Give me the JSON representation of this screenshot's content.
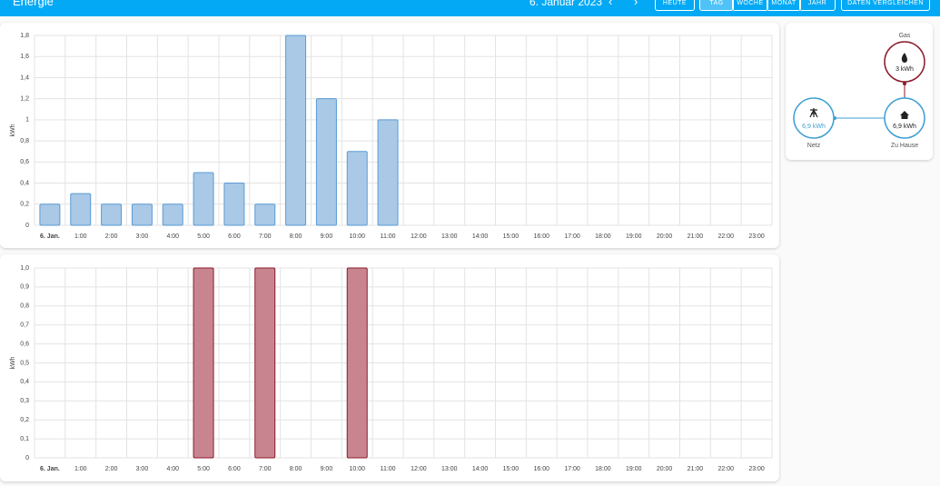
{
  "header": {
    "title": "Energie",
    "date": "6. Januar 2023",
    "buttons": [
      "HEUTE",
      "TAG",
      "WOCHE",
      "MONAT",
      "JAHR"
    ],
    "compare": "DATEN VERGLEICHEN"
  },
  "chart_data": [
    {
      "type": "bar",
      "y_label": "kWh",
      "color": "#a9c9e6",
      "border_color": "#5a9bd4",
      "categories": [
        "6. Jan.",
        "1:00",
        "2:00",
        "3:00",
        "4:00",
        "5:00",
        "6:00",
        "7:00",
        "8:00",
        "9:00",
        "10:00",
        "11:00",
        "12:00",
        "13:00",
        "14:00",
        "15:00",
        "16:00",
        "17:00",
        "18:00",
        "19:00",
        "20:00",
        "21:00",
        "22:00",
        "23:00"
      ],
      "values": [
        0.2,
        0.3,
        0.2,
        0.2,
        0.2,
        0.5,
        0.4,
        0.2,
        1.8,
        1.2,
        0.7,
        1,
        null,
        null,
        null,
        null,
        null,
        null,
        null,
        null,
        null,
        null,
        null,
        null
      ],
      "ylim": [
        0,
        1.8
      ],
      "yticks": [
        0,
        {
          "value": 0.2,
          "label": "0,2"
        },
        {
          "value": 0.4,
          "label": "0,4"
        },
        {
          "value": 0.6,
          "label": "0,6"
        },
        {
          "value": 0.8,
          "label": "0,8"
        },
        1,
        {
          "value": 1.2,
          "label": "1,2"
        },
        {
          "value": 1.4,
          "label": "1,4"
        },
        {
          "value": 1.6,
          "label": "1,6"
        },
        {
          "value": 1.8,
          "label": "1,8"
        }
      ],
      "grid": true
    },
    {
      "type": "bar",
      "y_label": "kWh",
      "color": "#c8858f",
      "border_color": "#8b1a2b",
      "categories": [
        "6. Jan.",
        "1:00",
        "2:00",
        "3:00",
        "4:00",
        "5:00",
        "6:00",
        "7:00",
        "8:00",
        "9:00",
        "10:00",
        "11:00",
        "12:00",
        "13:00",
        "14:00",
        "15:00",
        "16:00",
        "17:00",
        "18:00",
        "19:00",
        "20:00",
        "21:00",
        "22:00",
        "23:00"
      ],
      "values": [
        0,
        0,
        0,
        0,
        0,
        1,
        0,
        1,
        0,
        0,
        1,
        0,
        null,
        null,
        null,
        null,
        null,
        null,
        null,
        null,
        null,
        null,
        null,
        null
      ],
      "ylim": [
        0,
        1
      ],
      "yticks": [
        0,
        {
          "value": 0.1,
          "label": "0,1"
        },
        {
          "value": 0.2,
          "label": "0,2"
        },
        {
          "value": 0.3,
          "label": "0,3"
        },
        {
          "value": 0.4,
          "label": "0,4"
        },
        {
          "value": 0.5,
          "label": "0,5"
        },
        {
          "value": 0.6,
          "label": "0,6"
        },
        {
          "value": 0.7,
          "label": "0,7"
        },
        {
          "value": 0.8,
          "label": "0,8"
        },
        {
          "value": 0.9,
          "label": "0,9"
        },
        {
          "value": 1,
          "label": "1,0"
        }
      ],
      "grid": true
    }
  ],
  "energy_flow": {
    "gas": {
      "label": "Gas",
      "value": "3 kWh"
    },
    "grid": {
      "label": "Netz",
      "value": "6,9 kWh"
    },
    "home": {
      "label": "Zu Hause",
      "value": "6,9 kWh"
    }
  }
}
